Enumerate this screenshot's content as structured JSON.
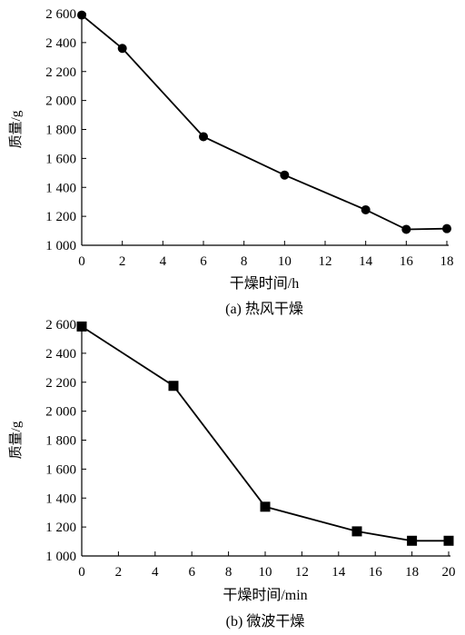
{
  "chart_data": [
    {
      "type": "line",
      "xlabel": "干燥时间/h",
      "ylabel": "质量/g",
      "caption": "(a) 热风干燥",
      "xlim": [
        0,
        18
      ],
      "ylim": [
        1000,
        2600
      ],
      "xticks": [
        0,
        2,
        4,
        6,
        8,
        10,
        12,
        14,
        16,
        18
      ],
      "yticks": [
        1000,
        1200,
        1400,
        1600,
        1800,
        2000,
        2200,
        2400,
        2600
      ],
      "ytick_labels": [
        "1 000",
        "1 200",
        "1 400",
        "1 600",
        "1 800",
        "2 000",
        "2 200",
        "2 400",
        "2 600"
      ],
      "marker": "circle",
      "series": [
        {
          "x": [
            0,
            2,
            6,
            10,
            14,
            16,
            18
          ],
          "y": [
            2590,
            2360,
            1750,
            1485,
            1245,
            1110,
            1115
          ]
        }
      ]
    },
    {
      "type": "line",
      "xlabel": "干燥时间/min",
      "ylabel": "质量/g",
      "caption": "(b) 微波干燥",
      "xlim": [
        0,
        20
      ],
      "ylim": [
        1000,
        2600
      ],
      "xticks": [
        0,
        2,
        4,
        6,
        8,
        10,
        12,
        14,
        16,
        18,
        20
      ],
      "yticks": [
        1000,
        1200,
        1400,
        1600,
        1800,
        2000,
        2200,
        2400,
        2600
      ],
      "ytick_labels": [
        "1 000",
        "1 200",
        "1 400",
        "1 600",
        "1 800",
        "2 000",
        "2 200",
        "2 400",
        "2 600"
      ],
      "marker": "square",
      "series": [
        {
          "x": [
            0,
            5,
            10,
            15,
            18,
            20
          ],
          "y": [
            2585,
            2175,
            1340,
            1170,
            1105,
            1105
          ]
        }
      ]
    }
  ]
}
